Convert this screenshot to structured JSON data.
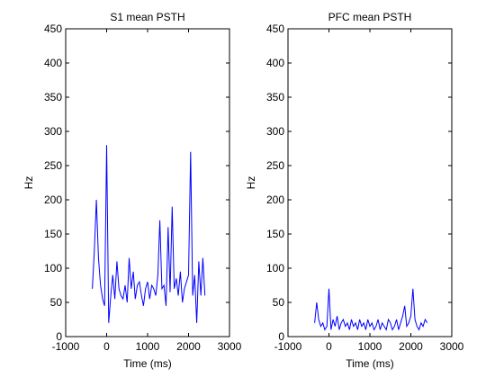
{
  "chart_data": [
    {
      "type": "line",
      "title": "S1 mean PSTH",
      "xlabel": "Time (ms)",
      "ylabel": "Hz",
      "xlim": [
        -1000,
        3000
      ],
      "ylim": [
        0,
        450
      ],
      "xticks": [
        -1000,
        0,
        1000,
        2000,
        3000
      ],
      "yticks": [
        0,
        50,
        100,
        150,
        200,
        250,
        300,
        350,
        400,
        450
      ],
      "grid": false,
      "series_color": "#0000ff",
      "series": [
        {
          "x": [
            -350,
            -300,
            -250,
            -200,
            -150,
            -100,
            -50,
            0,
            50,
            100,
            150,
            200,
            250,
            300,
            350,
            400,
            450,
            500,
            550,
            600,
            650,
            700,
            750,
            800,
            850,
            900,
            950,
            1000,
            1050,
            1100,
            1150,
            1200,
            1250,
            1300,
            1350,
            1400,
            1450,
            1500,
            1550,
            1600,
            1650,
            1700,
            1750,
            1800,
            1850,
            1900,
            1950,
            2000,
            2050,
            2100,
            2150,
            2200,
            2250,
            2300,
            2350,
            2400
          ],
          "y": [
            70,
            125,
            200,
            115,
            75,
            55,
            45,
            280,
            20,
            60,
            90,
            55,
            110,
            70,
            60,
            55,
            75,
            50,
            115,
            70,
            95,
            55,
            75,
            80,
            60,
            45,
            70,
            80,
            55,
            75,
            70,
            60,
            90,
            170,
            70,
            75,
            45,
            160,
            65,
            190,
            70,
            85,
            60,
            95,
            50,
            70,
            80,
            90,
            270,
            60,
            90,
            20,
            110,
            60,
            115,
            60
          ]
        }
      ]
    },
    {
      "type": "line",
      "title": "PFC mean PSTH",
      "xlabel": "Time (ms)",
      "ylabel": "Hz",
      "xlim": [
        -1000,
        3000
      ],
      "ylim": [
        0,
        450
      ],
      "xticks": [
        -1000,
        0,
        1000,
        2000,
        3000
      ],
      "yticks": [
        0,
        50,
        100,
        150,
        200,
        250,
        300,
        350,
        400,
        450
      ],
      "grid": false,
      "series_color": "#0000ff",
      "series": [
        {
          "x": [
            -350,
            -300,
            -250,
            -200,
            -150,
            -100,
            -50,
            0,
            50,
            100,
            150,
            200,
            250,
            300,
            350,
            400,
            450,
            500,
            550,
            600,
            650,
            700,
            750,
            800,
            850,
            900,
            950,
            1000,
            1050,
            1100,
            1150,
            1200,
            1250,
            1300,
            1350,
            1400,
            1450,
            1500,
            1550,
            1600,
            1650,
            1700,
            1750,
            1800,
            1850,
            1900,
            1950,
            2000,
            2050,
            2100,
            2150,
            2200,
            2250,
            2300,
            2350,
            2400
          ],
          "y": [
            20,
            50,
            25,
            15,
            20,
            10,
            15,
            70,
            10,
            25,
            15,
            30,
            10,
            20,
            25,
            15,
            20,
            10,
            25,
            15,
            20,
            10,
            25,
            15,
            20,
            10,
            25,
            15,
            20,
            10,
            15,
            25,
            10,
            20,
            15,
            10,
            25,
            20,
            10,
            15,
            25,
            10,
            20,
            30,
            45,
            15,
            20,
            30,
            70,
            25,
            15,
            10,
            20,
            15,
            25,
            20
          ]
        }
      ]
    }
  ]
}
